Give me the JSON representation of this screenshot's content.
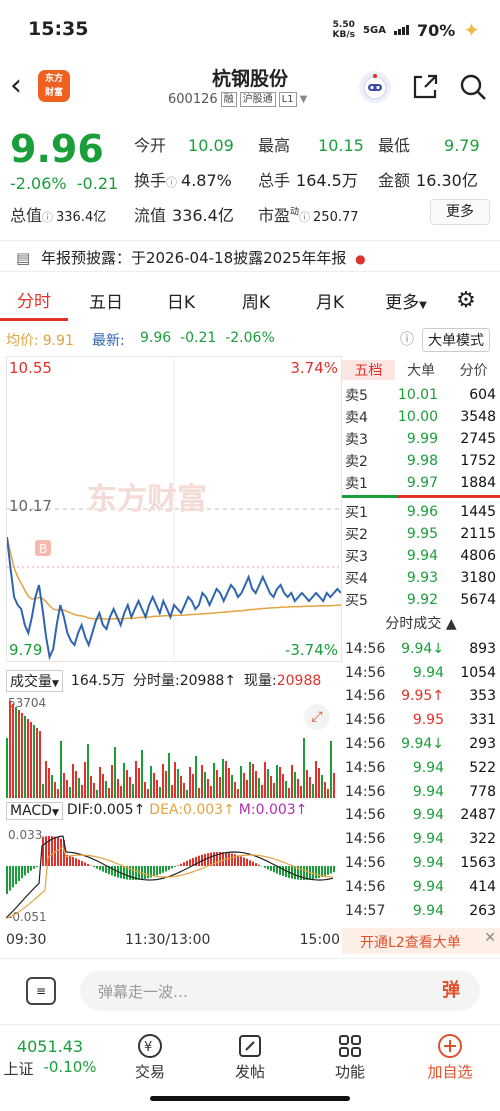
{
  "status": {
    "time": "15:35",
    "net_speed": "5.50",
    "net_unit": "KB/s",
    "network": "5GA",
    "battery": "70%"
  },
  "header": {
    "stock_name": "杭钢股份",
    "code": "600126",
    "tag1": "融",
    "tag2": "沪股通",
    "tag3": "L1",
    "logo_line1": "东方",
    "logo_line2": "财富"
  },
  "quote": {
    "price": "9.96",
    "change_pct": "-2.06%",
    "change": "-0.21",
    "open_label": "今开",
    "open": "10.09",
    "high_label": "最高",
    "high": "10.15",
    "low_label": "最低",
    "low": "9.79",
    "turnover_label": "换手",
    "turnover": "4.87%",
    "volume_label": "总手",
    "volume": "164.5万",
    "amount_label": "金额",
    "amount": "16.30亿",
    "mcap_label": "总值",
    "mcap": "336.4亿",
    "float_label": "流值",
    "float": "336.4亿",
    "pe_label": "市盈",
    "pe_sup": "动",
    "pe": "250.77",
    "more": "更多"
  },
  "notice": {
    "text": "年报预披露：于2026-04-18披露2025年年报"
  },
  "tabs": [
    "分时",
    "五日",
    "日K",
    "周K",
    "月K",
    "更多"
  ],
  "avg_row": {
    "avg_label": "均价:",
    "avg": "9.91",
    "latest_label": "最新:",
    "latest": "9.96",
    "chg": "-0.21",
    "pct": "-2.06%",
    "mode": "大单模式"
  },
  "chart": {
    "top_price": "10.55",
    "top_pct": "3.74%",
    "mid_price": "10.17",
    "bottom_price": "9.79",
    "bottom_pct": "-3.74%",
    "watermark": "东方财富",
    "marker": "B"
  },
  "volume": {
    "label": "成交量",
    "total": "164.5万",
    "fen_label": "分时量:",
    "fen": "20988",
    "now_label": "现量:",
    "now": "20988",
    "max": "53704"
  },
  "macd": {
    "label": "MACD",
    "dif": "DIF:0.005",
    "dea": "DEA:0.003",
    "m": "M:0.003",
    "top": "0.033",
    "bottom": "-0.051"
  },
  "axis": {
    "start": "09:30",
    "mid": "11:30/13:00",
    "end": "15:00"
  },
  "book": {
    "tabs": [
      "五档",
      "大单",
      "分价"
    ],
    "sells": [
      {
        "l": "卖5",
        "p": "10.01",
        "q": "604"
      },
      {
        "l": "卖4",
        "p": "10.00",
        "q": "3548"
      },
      {
        "l": "卖3",
        "p": "9.99",
        "q": "2745"
      },
      {
        "l": "卖2",
        "p": "9.98",
        "q": "1752"
      },
      {
        "l": "卖1",
        "p": "9.97",
        "q": "1884"
      }
    ],
    "buys": [
      {
        "l": "买1",
        "p": "9.96",
        "q": "1445"
      },
      {
        "l": "买2",
        "p": "9.95",
        "q": "2115"
      },
      {
        "l": "买3",
        "p": "9.94",
        "q": "4806"
      },
      {
        "l": "买4",
        "p": "9.93",
        "q": "3180"
      },
      {
        "l": "买5",
        "p": "9.92",
        "q": "5674"
      }
    ],
    "ticks_title": "分时成交",
    "ticks": [
      {
        "t": "14:56",
        "p": "9.94↓",
        "q": "893",
        "c": "g"
      },
      {
        "t": "14:56",
        "p": "9.94",
        "q": "1054",
        "c": "g"
      },
      {
        "t": "14:56",
        "p": "9.95↑",
        "q": "353",
        "c": "r"
      },
      {
        "t": "14:56",
        "p": "9.95",
        "q": "331",
        "c": "r"
      },
      {
        "t": "14:56",
        "p": "9.94↓",
        "q": "293",
        "c": "g"
      },
      {
        "t": "14:56",
        "p": "9.94",
        "q": "522",
        "c": "g"
      },
      {
        "t": "14:56",
        "p": "9.94",
        "q": "778",
        "c": "g"
      },
      {
        "t": "14:56",
        "p": "9.94",
        "q": "2487",
        "c": "g"
      },
      {
        "t": "14:56",
        "p": "9.94",
        "q": "322",
        "c": "g"
      },
      {
        "t": "14:56",
        "p": "9.94",
        "q": "1563",
        "c": "g"
      },
      {
        "t": "14:56",
        "p": "9.94",
        "q": "414",
        "c": "g"
      },
      {
        "t": "14:57",
        "p": "9.94",
        "q": "263",
        "c": "g"
      }
    ],
    "l2": "开通L2查看大单"
  },
  "danmu": {
    "placeholder": "弹幕走一波…",
    "btn": "弹"
  },
  "nav": {
    "index_value": "4051.43",
    "index_name": "上证",
    "index_pct": "-0.10%",
    "items": [
      "交易",
      "发帖",
      "功能",
      "加自选"
    ]
  },
  "colors": {
    "up": "#e0322b",
    "down": "#1a9e3a",
    "price_line": "#2f64b0",
    "avg_line": "#e3a340",
    "dea": "#e3a340",
    "m": "#b02fb0"
  },
  "price_series": [
    10.1,
    10.02,
    9.95,
    9.93,
    9.92,
    9.88,
    9.86,
    9.9,
    9.95,
    9.98,
    9.92,
    9.85,
    9.8,
    9.82,
    9.88,
    9.93,
    9.9,
    9.86,
    9.84,
    9.83,
    9.86,
    9.88,
    9.85,
    9.83,
    9.86,
    9.89,
    9.91,
    9.88,
    9.87,
    9.9,
    9.92,
    9.9,
    9.88,
    9.91,
    9.93,
    9.9,
    9.92,
    9.94,
    9.92,
    9.9,
    9.93,
    9.95,
    9.93,
    9.91,
    9.94,
    9.92,
    9.9,
    9.93,
    9.92,
    9.91,
    9.93,
    9.95,
    9.94,
    9.92,
    9.93,
    9.96,
    9.95,
    9.93,
    9.95,
    9.97,
    9.96,
    9.94,
    9.96,
    9.98,
    9.97,
    9.95,
    9.96,
    9.98,
    10.0,
    9.97,
    9.96,
    9.98,
    10.0,
    9.98,
    9.96,
    9.95,
    9.97,
    9.98,
    9.96,
    9.95,
    9.96,
    9.94,
    9.95,
    9.96,
    9.95,
    9.94,
    9.95,
    9.96,
    9.95,
    9.94,
    9.96,
    9.95,
    9.96,
    9.97,
    9.96
  ]
}
